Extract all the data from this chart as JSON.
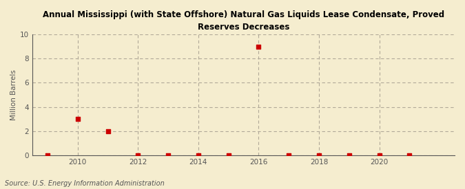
{
  "title": "Annual Mississippi (with State Offshore) Natural Gas Liquids Lease Condensate, Proved\nReserves Decreases",
  "ylabel": "Million Barrels",
  "source": "Source: U.S. Energy Information Administration",
  "background_color": "#f5edcf",
  "years": [
    2009,
    2010,
    2011,
    2012,
    2013,
    2014,
    2015,
    2016,
    2017,
    2018,
    2019,
    2020,
    2021
  ],
  "values": [
    0.0,
    3.0,
    2.0,
    0.02,
    0.02,
    0.02,
    0.02,
    9.0,
    0.02,
    0.02,
    0.02,
    0.02,
    0.02
  ],
  "marker_color": "#cc0000",
  "marker_size": 5,
  "xlim": [
    2008.5,
    2022.5
  ],
  "ylim": [
    0,
    10
  ],
  "yticks": [
    0,
    2,
    4,
    6,
    8,
    10
  ],
  "xticks": [
    2010,
    2012,
    2014,
    2016,
    2018,
    2020
  ],
  "grid_color": "#b0a898",
  "axis_color": "#555555",
  "title_fontsize": 8.5,
  "label_fontsize": 7.5,
  "tick_fontsize": 7.5,
  "source_fontsize": 7.0
}
